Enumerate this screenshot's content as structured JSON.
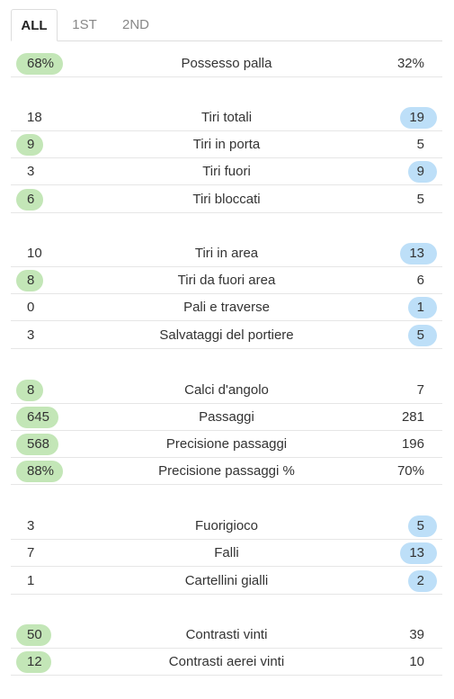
{
  "tabs": [
    "ALL",
    "1ST",
    "2ND"
  ],
  "stats": [
    {
      "label": "Possesso palla",
      "home": "68%",
      "away": "32%",
      "winner": "home"
    },
    {
      "label": "Tiri totali",
      "home": "18",
      "away": "19",
      "winner": "away"
    },
    {
      "label": "Tiri in porta",
      "home": "9",
      "away": "5",
      "winner": "home"
    },
    {
      "label": "Tiri fuori",
      "home": "3",
      "away": "9",
      "winner": "away"
    },
    {
      "label": "Tiri bloccati",
      "home": "6",
      "away": "5",
      "winner": "home"
    },
    {
      "label": "Tiri in area",
      "home": "10",
      "away": "13",
      "winner": "away"
    },
    {
      "label": "Tiri da fuori area",
      "home": "8",
      "away": "6",
      "winner": "home"
    },
    {
      "label": "Pali e traverse",
      "home": "0",
      "away": "1",
      "winner": "away"
    },
    {
      "label": "Salvataggi del portiere",
      "home": "3",
      "away": "5",
      "winner": "away"
    },
    {
      "label": "Calci d'angolo",
      "home": "8",
      "away": "7",
      "winner": "home"
    },
    {
      "label": "Passaggi",
      "home": "645",
      "away": "281",
      "winner": "home"
    },
    {
      "label": "Precisione passaggi",
      "home": "568",
      "away": "196",
      "winner": "home"
    },
    {
      "label": "Precisione passaggi %",
      "home": "88%",
      "away": "70%",
      "winner": "home"
    },
    {
      "label": "Fuorigioco",
      "home": "3",
      "away": "5",
      "winner": "away"
    },
    {
      "label": "Falli",
      "home": "7",
      "away": "13",
      "winner": "away"
    },
    {
      "label": "Cartellini gialli",
      "home": "1",
      "away": "2",
      "winner": "away"
    },
    {
      "label": "Contrasti vinti",
      "home": "50",
      "away": "39",
      "winner": "home"
    },
    {
      "label": "Contrasti aerei vinti",
      "home": "12",
      "away": "10",
      "winner": "home"
    }
  ],
  "colors": {
    "home_highlight": "#c3e6b7",
    "away_highlight": "#bddff8"
  }
}
